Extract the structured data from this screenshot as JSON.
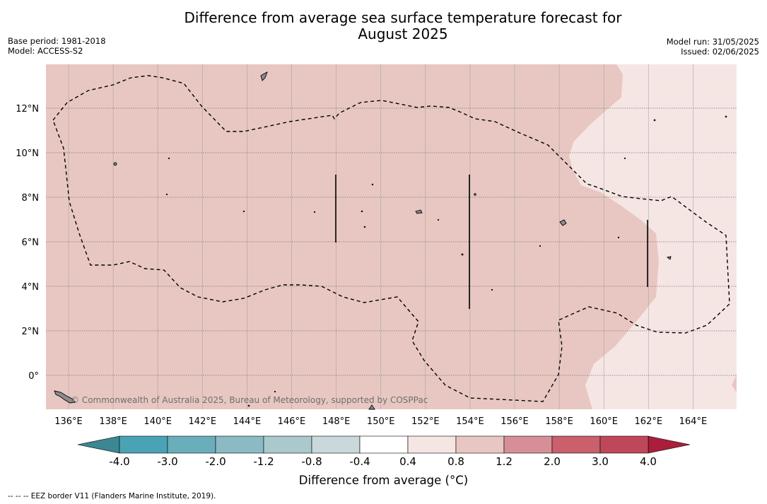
{
  "title_line1": "Difference from average sea surface temperature forecast for",
  "title_line2": "August 2025",
  "meta_left": {
    "base_period": "Base period: 1981-2018",
    "model": "Model: ACCESS-S2"
  },
  "meta_right": {
    "model_run": "Model run: 31/05/2025",
    "issued": "Issued: 02/06/2025"
  },
  "map": {
    "lon_ticks": [
      "136°E",
      "138°E",
      "140°E",
      "142°E",
      "144°E",
      "146°E",
      "148°E",
      "150°E",
      "152°E",
      "154°E",
      "156°E",
      "158°E",
      "160°E",
      "162°E",
      "164°E"
    ],
    "lat_ticks": [
      "12°N",
      "10°N",
      "8°N",
      "6°N",
      "4°N",
      "2°N",
      "0°"
    ],
    "copyright": "© Commonwealth of Australia 2025, Bureau of Meteorology, supported by COSPPac",
    "main_anomaly_color": "#e8c7c2",
    "weak_anomaly_color": "#f5e6e4",
    "land_color": "#8c8c8c",
    "eez_line_style": "dashed"
  },
  "colorbar": {
    "tick_labels": [
      "-4.0",
      "-3.0",
      "-2.0",
      "-1.2",
      "-0.8",
      "-0.4",
      "0.4",
      "0.8",
      "1.2",
      "2.0",
      "3.0",
      "4.0"
    ],
    "colors": [
      "#4aa3b4",
      "#6aaebb",
      "#8bbac4",
      "#a9c9cd",
      "#c9d8da",
      "#ffffff",
      "#f5e6e4",
      "#e8c7c2",
      "#d68f96",
      "#c9606b",
      "#be4859"
    ],
    "under_color": "#3c8792",
    "over_color": "#aa1e3c",
    "label": "Difference from average (°C)"
  },
  "footnote": "--  --  -- EEZ border V11 (Flanders Marine Institute, 2019)."
}
